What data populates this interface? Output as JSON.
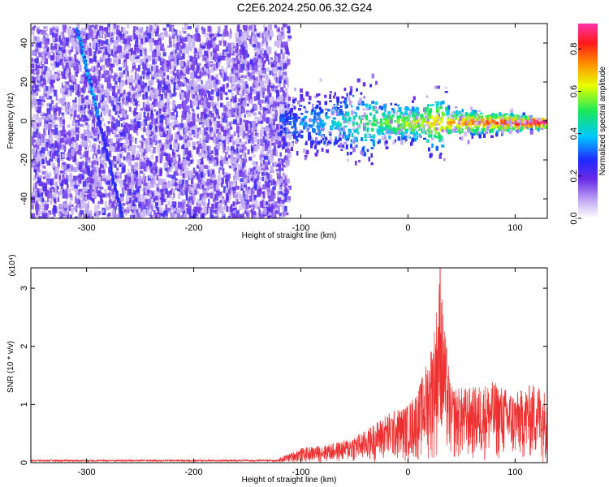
{
  "title": "C2E6.2024.250.06.32.G24",
  "colors": {
    "snr_line": "#ee3030",
    "colormap": [
      "#ffffff",
      "#c9b6f5",
      "#6a2be8",
      "#1f2aff",
      "#00c8ff",
      "#19e85a",
      "#e8ff00",
      "#ff8800",
      "#ff1a1a",
      "#ff33aa"
    ]
  },
  "chart_data": [
    {
      "type": "heatmap",
      "name": "spectrogram",
      "xlabel": "Height of straight line (km)",
      "ylabel": "Frequency (Hz)",
      "xlim": [
        -352,
        130
      ],
      "ylim": [
        -50,
        50
      ],
      "xticks": [
        -300,
        -200,
        -100,
        0,
        100
      ],
      "yticks": [
        -40,
        -20,
        0,
        20,
        40
      ],
      "colorbar": {
        "label": "Normalized spectral amplitude",
        "range": [
          0,
          0.92
        ],
        "ticks": [
          0.0,
          0.2,
          0.4,
          0.6,
          0.8
        ]
      },
      "features": {
        "noise_region_x": [
          -352,
          -120
        ],
        "signal_center_hz": 0,
        "signal_band_x": [
          -120,
          130
        ],
        "diagonal_trace": {
          "x_start": -310,
          "y_start": 48,
          "x_end": -268,
          "y_end": -48
        }
      }
    },
    {
      "type": "line",
      "name": "snr",
      "xlabel": "Height of straight line (km)",
      "ylabel": "SNR (10 * v/v)",
      "y_multiplier": "(x10⁴)",
      "xlim": [
        -352,
        130
      ],
      "ylim": [
        0,
        3.35
      ],
      "xticks": [
        -300,
        -200,
        -100,
        0,
        100
      ],
      "yticks": [
        0,
        1,
        2,
        3
      ],
      "envelope": {
        "x": [
          -352,
          -250,
          -150,
          -120,
          -100,
          -80,
          -60,
          -40,
          -20,
          0,
          10,
          20,
          25,
          30,
          35,
          40,
          60,
          80,
          100,
          120,
          130
        ],
        "y": [
          0.04,
          0.04,
          0.04,
          0.08,
          0.25,
          0.3,
          0.38,
          0.55,
          0.85,
          1.0,
          1.3,
          1.9,
          2.4,
          3.35,
          2.2,
          1.3,
          1.3,
          1.4,
          1.2,
          1.4,
          1.2
        ]
      }
    }
  ]
}
